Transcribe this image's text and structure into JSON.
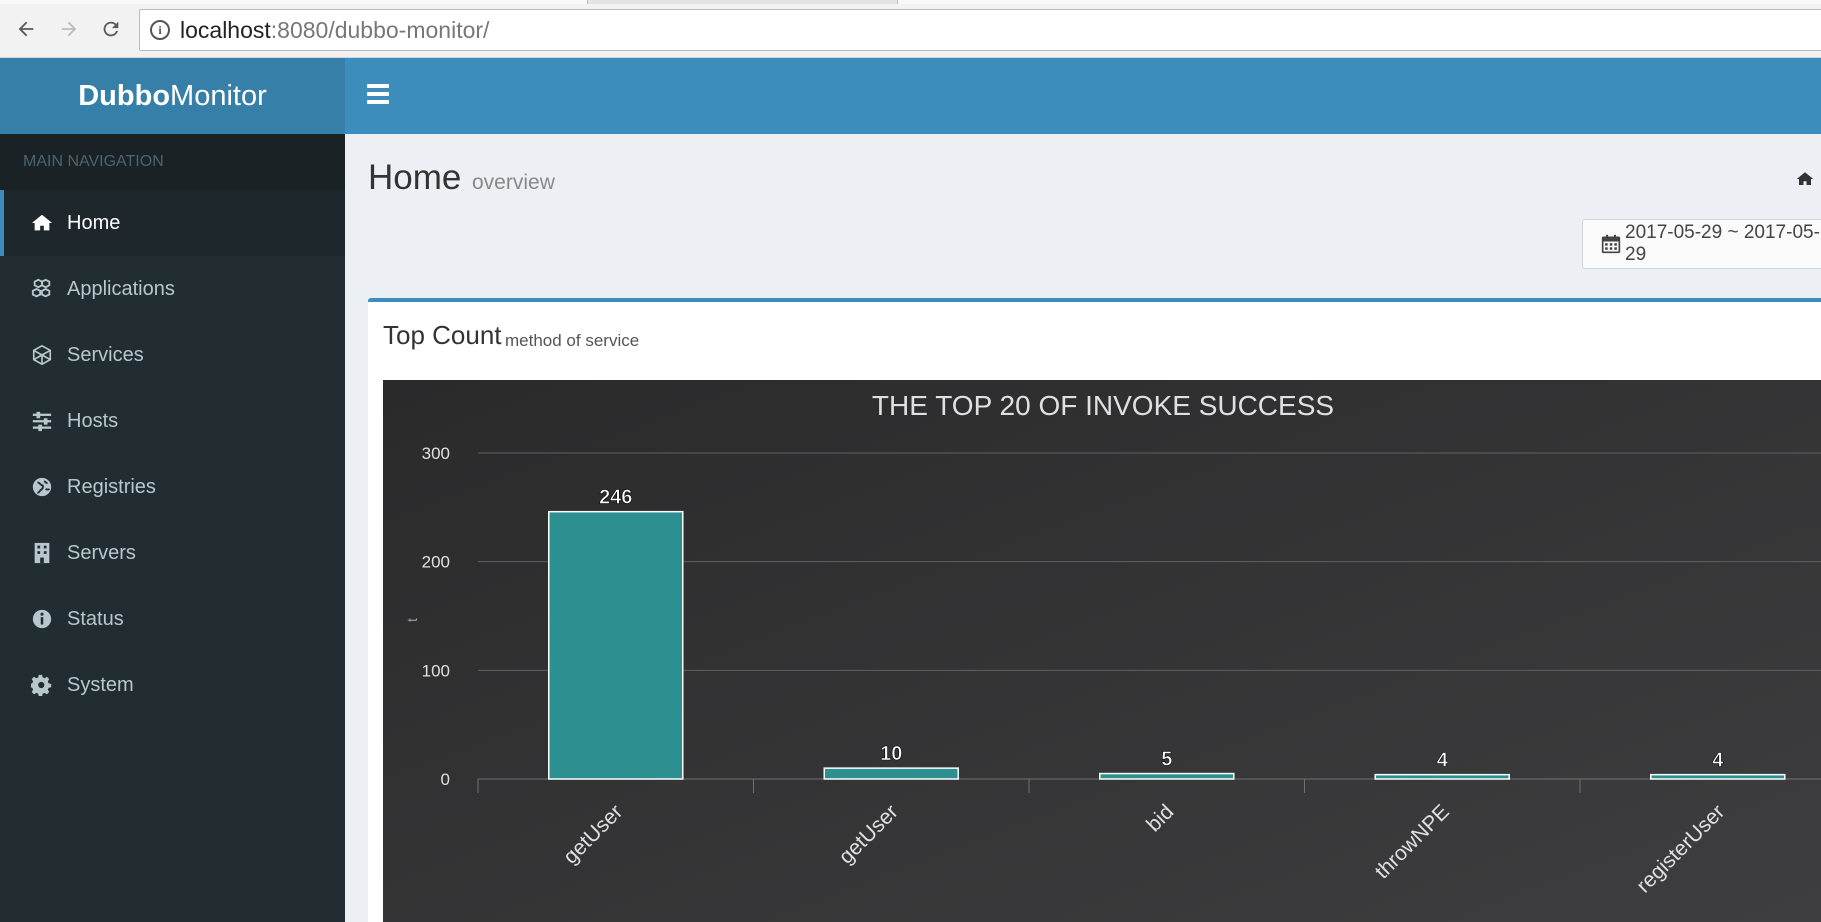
{
  "browser": {
    "url_host": "localhost",
    "url_rest": ":8080/dubbo-monitor/"
  },
  "header": {
    "logo_bold": "Dubbo",
    "logo_light": "Monitor"
  },
  "sidebar": {
    "header": "MAIN NAVIGATION",
    "items": [
      {
        "label": "Home",
        "icon": "home-icon",
        "active": true
      },
      {
        "label": "Applications",
        "icon": "cubes-icon",
        "active": false
      },
      {
        "label": "Services",
        "icon": "cube-network-icon",
        "active": false
      },
      {
        "label": "Hosts",
        "icon": "sliders-icon",
        "active": false
      },
      {
        "label": "Registries",
        "icon": "globe-icon",
        "active": false
      },
      {
        "label": "Servers",
        "icon": "building-icon",
        "active": false
      },
      {
        "label": "Status",
        "icon": "info-icon",
        "active": false
      },
      {
        "label": "System",
        "icon": "gear-icon",
        "active": false
      }
    ]
  },
  "content": {
    "title": "Home",
    "subtitle": "overview",
    "date_range": "2017-05-29 ~ 2017-05-29"
  },
  "panel": {
    "title": "Top Count",
    "subtitle": "method of service"
  },
  "colors": {
    "accent": "#3c8dbc",
    "logo_bg": "#367fa9",
    "sidebar_bg": "#222d32",
    "bar_fill": "#2b908f",
    "chart_bg": "#2a2a2b"
  },
  "chart_data": {
    "type": "bar",
    "title": "THE TOP 20 OF INVOKE SUCCESS",
    "ylabel": "t",
    "xlabel": "",
    "categories": [
      "getUser",
      "getUser",
      "bid",
      "throwNPE",
      "registerUser"
    ],
    "values": [
      246,
      10,
      5,
      4,
      4
    ],
    "ylim": [
      0,
      300
    ],
    "yticks": [
      0,
      100,
      200,
      300
    ],
    "grid": true,
    "data_labels": true
  }
}
